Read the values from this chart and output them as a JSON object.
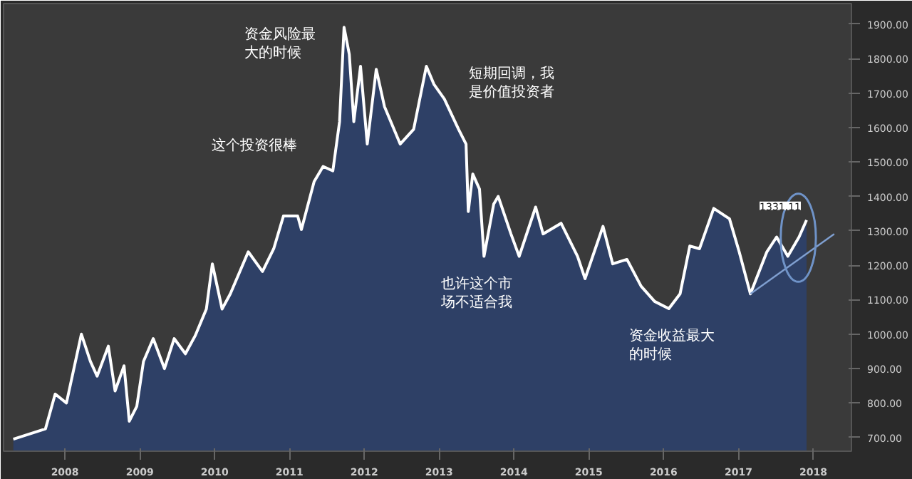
{
  "chart_data": {
    "type": "area",
    "series": [
      {
        "color": "#2e4066",
        "x": [
          2007.31,
          2007.74,
          2007.87,
          2008.02,
          2008.22,
          2008.34,
          2008.43,
          2008.58,
          2008.67,
          2008.79,
          2008.86,
          2008.96,
          2009.05,
          2009.18,
          2009.33,
          2009.46,
          2009.61,
          2009.74,
          2009.89,
          2009.97,
          2010.1,
          2010.21,
          2010.45,
          2010.64,
          2010.79,
          2010.92,
          2011.11,
          2011.16,
          2011.33,
          2011.45,
          2011.58,
          2011.67,
          2011.73,
          2011.8,
          2011.86,
          2011.95,
          2012.04,
          2012.16,
          2012.27,
          2012.48,
          2012.66,
          2012.83,
          2012.93,
          2013.07,
          2013.26,
          2013.36,
          2013.39,
          2013.45,
          2013.54,
          2013.6,
          2013.73,
          2013.79,
          2013.96,
          2014.07,
          2014.29,
          2014.39,
          2014.63,
          2014.85,
          2014.95,
          2015.19,
          2015.32,
          2015.51,
          2015.7,
          2015.88,
          2016.07,
          2016.22,
          2016.35,
          2016.48,
          2016.67,
          2016.88,
          2017.01,
          2017.16,
          2017.38,
          2017.51,
          2017.66,
          2017.81,
          2017.91
        ],
        "values": [
          695,
          725,
          826,
          800,
          1000,
          921,
          878,
          965,
          835,
          908,
          747,
          790,
          921,
          987,
          900,
          987,
          943,
          995,
          1073,
          1204,
          1073,
          1117,
          1239,
          1182,
          1248,
          1343,
          1343,
          1304,
          1443,
          1487,
          1474,
          1617,
          1891,
          1813,
          1617,
          1778,
          1552,
          1769,
          1661,
          1552,
          1595,
          1778,
          1726,
          1683,
          1595,
          1552,
          1356,
          1465,
          1421,
          1226,
          1378,
          1400,
          1291,
          1226,
          1369,
          1291,
          1322,
          1226,
          1161,
          1313,
          1204,
          1217,
          1139,
          1095,
          1074,
          1117,
          1256,
          1248,
          1365,
          1335,
          1239,
          1117,
          1239,
          1282,
          1226,
          1282,
          1331.11
        ]
      },
      {
        "type": "line",
        "color": "#7f9fd0",
        "x": [
          2017.16,
          2018.28
        ],
        "values": [
          1117,
          1291
        ]
      }
    ],
    "xlim": [
      2007.18,
      2018.51
    ],
    "ylim": [
      660,
      1960
    ],
    "xticks": [
      2008,
      2009,
      2010,
      2011,
      2012,
      2013,
      2014,
      2015,
      2016,
      2017,
      2018
    ],
    "yticks": [
      {
        "value": 700,
        "label": "700.00"
      },
      {
        "value": 800,
        "label": "800.00"
      },
      {
        "value": 900,
        "label": "900.00"
      },
      {
        "value": 1000,
        "label": "1000.00"
      },
      {
        "value": 1100,
        "label": "1100.00"
      },
      {
        "value": 1200,
        "label": "1200.00"
      },
      {
        "value": 1300,
        "label": "1300.00"
      },
      {
        "value": 1400,
        "label": "1400.00"
      },
      {
        "value": 1500,
        "label": "1500.00"
      },
      {
        "value": 1600,
        "label": "1600.00"
      },
      {
        "value": 1700,
        "label": "1700.00"
      },
      {
        "value": 1800,
        "label": "1800.00"
      },
      {
        "value": 1900,
        "label": "1900.00"
      }
    ],
    "annotations": [
      {
        "text": "资金风险最",
        "x": 2011.73,
        "y": 1891
      },
      "大的时候",
      {
        "text": "这个投资很棒",
        "x": 2011.33,
        "y": 1443
      },
      {
        "text": "短期回调，我",
        "x": 2012.83,
        "y": 1778
      },
      "是价值投资者",
      {
        "text": "也许这个市",
        "x": 2013.6,
        "y": 1226
      },
      "场不适合我",
      {
        "text": "资金收益最大",
        "x": 2016.07,
        "y": 1074
      },
      "的时候",
      {
        "text": "1331.11",
        "x": 2017.91,
        "y": 1331.11
      }
    ],
    "grid": false
  }
}
